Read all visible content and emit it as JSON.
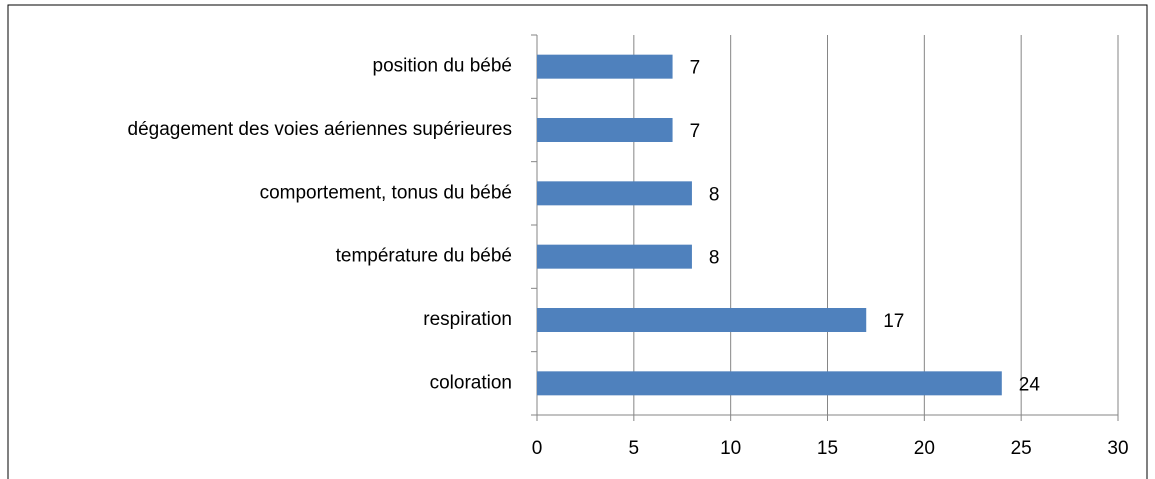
{
  "chart_data": {
    "type": "bar",
    "orientation": "horizontal",
    "categories": [
      "position du bébé",
      "dégagement des voies aériennes supérieures",
      "comportement, tonus du bébé",
      "température du bébé",
      "respiration",
      "coloration"
    ],
    "values": [
      7,
      7,
      8,
      8,
      17,
      24
    ],
    "color": "#4f81bd",
    "xlim": [
      0,
      30
    ],
    "xticks": [
      0,
      5,
      10,
      15,
      20,
      25,
      30
    ],
    "grid": true
  }
}
